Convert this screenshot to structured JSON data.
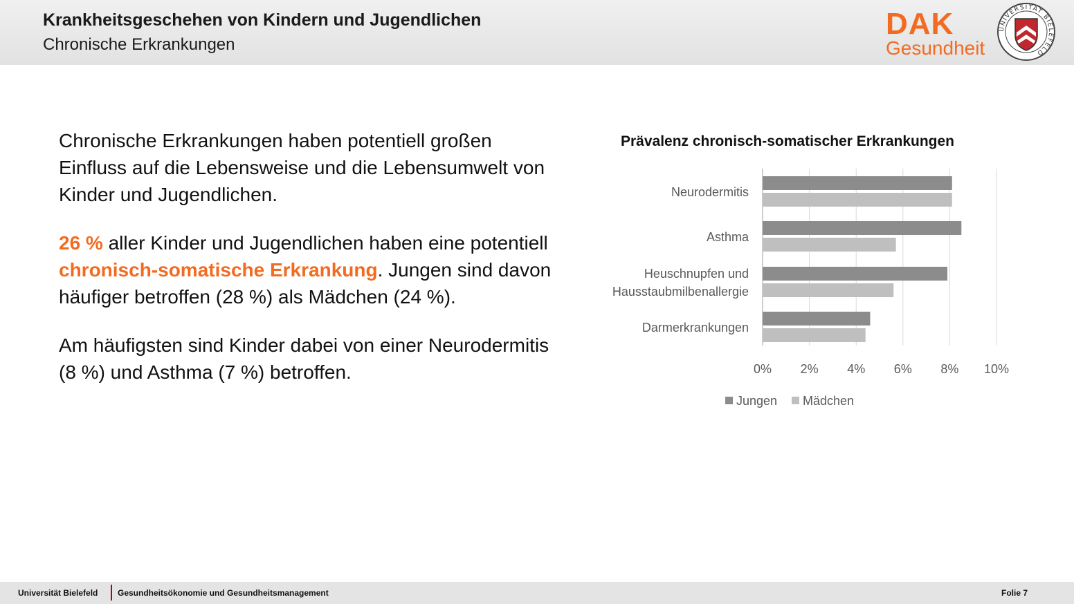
{
  "header": {
    "title": "Krankheitsgeschehen von Kindern und Jugendlichen",
    "subtitle": "Chronische Erkrankungen",
    "logo_word": "DAK",
    "logo_sub": "Gesundheit",
    "seal_text": "UNIVERSITÄT BIELEFELD"
  },
  "content": {
    "p1": "Chronische Erkrankungen haben potentiell großen Einfluss auf die Lebensweise und die Lebensumwelt von Kinder und Jugendlichen.",
    "p2_highlight1": "26 %",
    "p2_text1": " aller Kinder und Jugendlichen haben eine potentiell ",
    "p2_highlight2": "chronisch-somatische Erkrankung",
    "p2_text2": ". Jungen sind davon häufiger betroffen (28 %) als Mädchen (24 %).",
    "p3": "Am häufigsten sind Kinder dabei von einer Neurodermitis (8 %) und Asthma (7 %) betroffen."
  },
  "chart_data": {
    "type": "bar",
    "orientation": "horizontal",
    "title": "Prävalenz chronisch-somatischer Erkrankungen",
    "categories": [
      [
        "Neurodermitis"
      ],
      [
        "Asthma"
      ],
      [
        "Heuschnupfen und",
        "Hausstaubmilbenallergie"
      ],
      [
        "Darmerkrankungen"
      ]
    ],
    "series": [
      {
        "name": "Jungen",
        "values": [
          8.1,
          8.5,
          7.9,
          4.6
        ],
        "color": "#8c8c8c"
      },
      {
        "name": "Mädchen",
        "values": [
          8.1,
          5.7,
          5.6,
          4.4
        ],
        "color": "#bfbfbf"
      }
    ],
    "xlim": [
      0,
      10
    ],
    "xticks": [
      "0%",
      "2%",
      "4%",
      "6%",
      "8%",
      "10%"
    ],
    "grid": true,
    "legend": "bottom"
  },
  "footer": {
    "university": "Universität Bielefeld",
    "department": "Gesundheitsökonomie und Gesundheitsmanagement",
    "slide": "Folie 7"
  },
  "colors": {
    "accent": "#f26b21",
    "seal_red": "#c0282d"
  }
}
